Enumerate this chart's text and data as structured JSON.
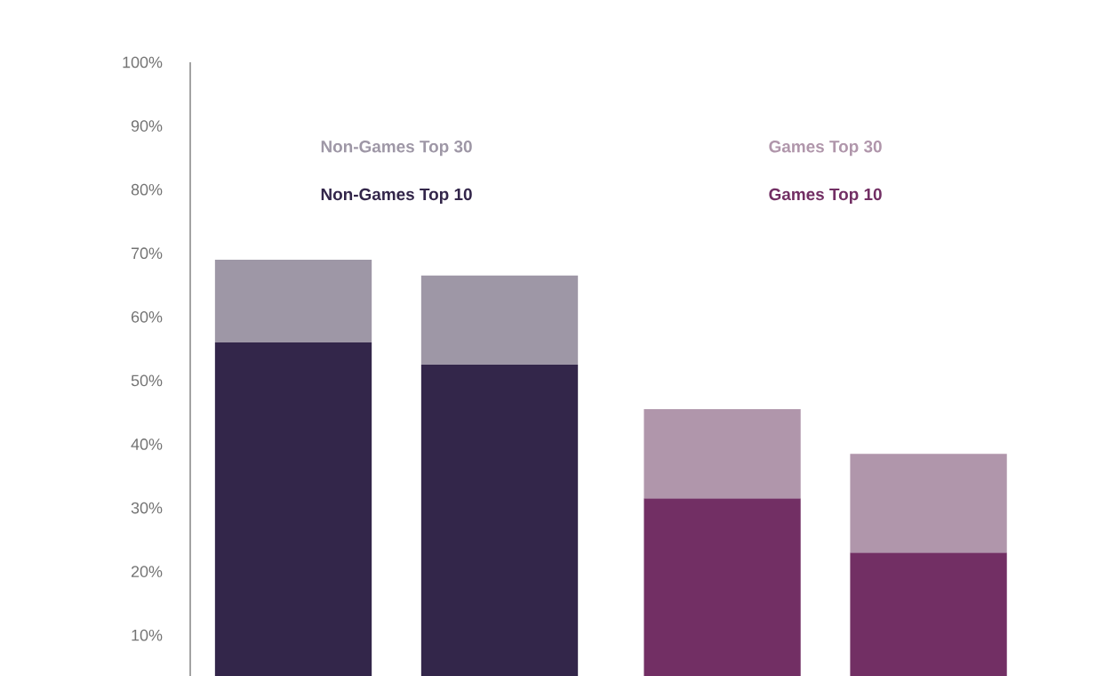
{
  "chart_data": {
    "type": "bar",
    "stacked": true,
    "categories": [
      null,
      null,
      null,
      null
    ],
    "series": [
      {
        "name": "Non-Games Top 10",
        "color": "#33264a",
        "values": [
          56,
          52.5,
          null,
          null
        ]
      },
      {
        "name": "Games Top 10",
        "color": "#722f64",
        "values": [
          null,
          null,
          31.5,
          23
        ]
      },
      {
        "name": "Non-Games Top 30",
        "color": "#9e97a6",
        "values": [
          13,
          14,
          null,
          null
        ]
      },
      {
        "name": "Games Top 30",
        "color": "#b096ab",
        "values": [
          null,
          null,
          14,
          15.5
        ]
      }
    ],
    "ylim": [
      3.6,
      100
    ],
    "yticks": [
      {
        "value": 10,
        "label": "10%"
      },
      {
        "value": 20,
        "label": "20%"
      },
      {
        "value": 30,
        "label": "30%"
      },
      {
        "value": 40,
        "label": "40%"
      },
      {
        "value": 50,
        "label": "50%"
      },
      {
        "value": 60,
        "label": "60%"
      },
      {
        "value": 70,
        "label": "70%"
      },
      {
        "value": 80,
        "label": "80%"
      },
      {
        "value": 90,
        "label": "90%"
      },
      {
        "value": 100,
        "label": "100%"
      }
    ],
    "legend": "top",
    "grid": false
  }
}
